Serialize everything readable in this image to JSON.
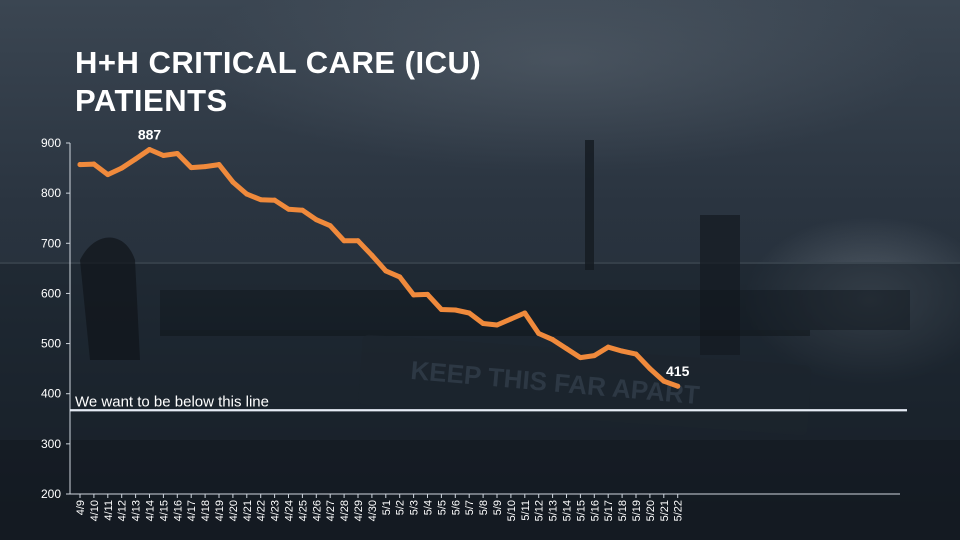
{
  "slide": {
    "title_line1": "H+H CRITICAL CARE (ICU)",
    "title_line2": "PATIENTS"
  },
  "background": {
    "sign_text": "KEEP THIS FAR APART"
  },
  "colors": {
    "series_line": "#f08a3c",
    "reference_line": "#e6ecf5",
    "axis": "#cfd6de"
  },
  "chart_data": {
    "type": "line",
    "title": "H+H CRITICAL CARE (ICU) PATIENTS",
    "xlabel": "",
    "ylabel": "",
    "ylim": [
      200,
      900
    ],
    "yticks": [
      200,
      300,
      400,
      500,
      600,
      700,
      800,
      900
    ],
    "grid": false,
    "categories": [
      "4/9",
      "4/10",
      "4/11",
      "4/12",
      "4/13",
      "4/14",
      "4/15",
      "4/16",
      "4/17",
      "4/18",
      "4/19",
      "4/20",
      "4/21",
      "4/22",
      "4/23",
      "4/24",
      "4/25",
      "4/26",
      "4/27",
      "4/28",
      "4/29",
      "4/30",
      "5/1",
      "5/2",
      "5/3",
      "5/4",
      "5/5",
      "5/6",
      "5/7",
      "5/8",
      "5/9",
      "5/10",
      "5/11",
      "5/12",
      "5/13",
      "5/14",
      "5/15",
      "5/16",
      "5/17",
      "5/18",
      "5/19",
      "5/20",
      "5/21",
      "5/22"
    ],
    "series": [
      {
        "values": [
          857,
          858,
          837,
          850,
          868,
          887,
          875,
          879,
          851,
          853,
          857,
          822,
          798,
          787,
          786,
          768,
          766,
          747,
          735,
          705,
          705,
          676,
          645,
          633,
          597,
          598,
          568,
          567,
          561,
          540,
          537,
          549,
          561,
          520,
          508,
          490,
          472,
          476,
          493,
          485,
          479,
          450,
          425,
          415
        ]
      }
    ],
    "point_labels": [
      {
        "category": "4/14",
        "text": "887"
      },
      {
        "category": "5/22",
        "text": "415"
      }
    ],
    "reference_line": {
      "value": 367,
      "label": "We want to be below this line"
    }
  }
}
